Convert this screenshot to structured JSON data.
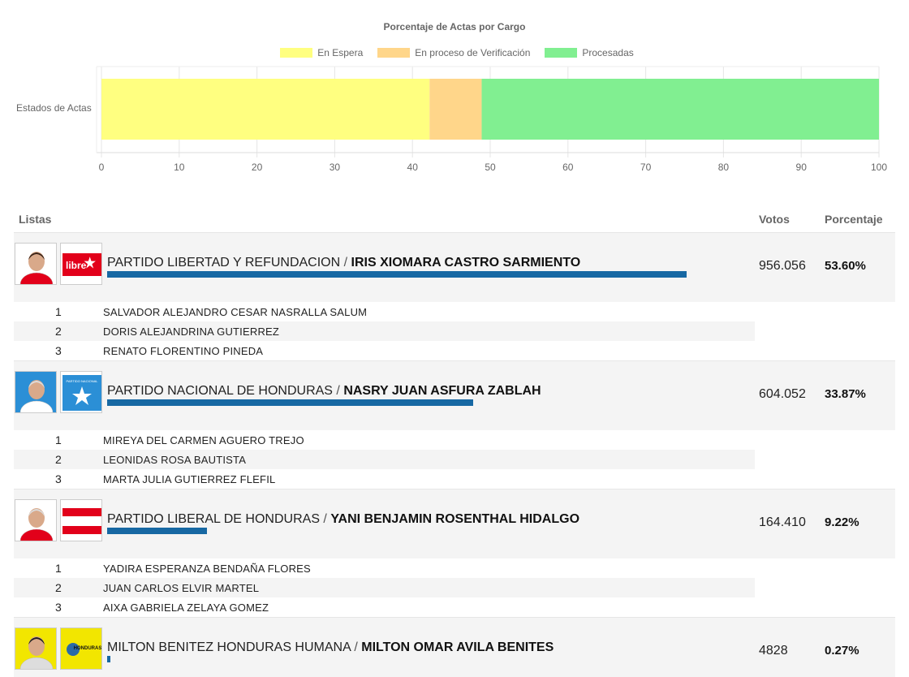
{
  "chart_data": {
    "type": "bar",
    "orientation": "horizontal",
    "stacked": true,
    "title": "Porcentaje de Actas por Cargo",
    "categories": [
      "Estados de Actas"
    ],
    "series": [
      {
        "name": "En Espera",
        "values": [
          42.2
        ],
        "color": "#ffff80"
      },
      {
        "name": "En proceso de Verificación",
        "values": [
          6.7
        ],
        "color": "#ffd68a"
      },
      {
        "name": "Procesadas",
        "values": [
          51.1
        ],
        "color": "#81ef91"
      }
    ],
    "xlim": [
      0,
      100
    ],
    "xticks": [
      "0",
      "10",
      "20",
      "30",
      "40",
      "50",
      "60",
      "70",
      "80",
      "90",
      "100"
    ],
    "grid": true,
    "legend": "top"
  },
  "table": {
    "headers": {
      "listas": "Listas",
      "votos": "Votos",
      "porcentaje": "Porcentaje"
    },
    "parties": [
      {
        "party": "PARTIDO LIBERTAD Y REFUNDACION",
        "candidate": "IRIS XIOMARA CASTRO SARMIENTO",
        "votes": "956.056",
        "percent": "53.60%",
        "share": 53.6,
        "logo_text": "libre",
        "logo_color": "#e2001a",
        "photo_bg": "#ffffff",
        "designates": [
          {
            "num": "1",
            "name": "SALVADOR ALEJANDRO CESAR NASRALLA SALUM"
          },
          {
            "num": "2",
            "name": "DORIS ALEJANDRINA GUTIERREZ"
          },
          {
            "num": "3",
            "name": "RENATO FLORENTINO PINEDA"
          }
        ]
      },
      {
        "party": "PARTIDO NACIONAL DE HONDURAS",
        "candidate": "NASRY JUAN ASFURA ZABLAH",
        "votes": "604.052",
        "percent": "33.87%",
        "share": 33.87,
        "logo_text": "PARTIDO NACIONAL",
        "logo_color": "#2b8fd6",
        "photo_bg": "#2b8fd6",
        "designates": [
          {
            "num": "1",
            "name": "MIREYA DEL CARMEN AGUERO TREJO"
          },
          {
            "num": "2",
            "name": "LEONIDAS ROSA BAUTISTA"
          },
          {
            "num": "3",
            "name": "MARTA JULIA GUTIERREZ FLEFIL"
          }
        ]
      },
      {
        "party": "PARTIDO LIBERAL DE HONDURAS",
        "candidate": "YANI BENJAMIN ROSENTHAL HIDALGO",
        "votes": "164.410",
        "percent": "9.22%",
        "share": 9.22,
        "logo_text": "",
        "logo_color": "#e2001a",
        "photo_bg": "#ffffff",
        "designates": [
          {
            "num": "1",
            "name": "YADIRA ESPERANZA BENDAÑA FLORES"
          },
          {
            "num": "2",
            "name": "JUAN CARLOS ELVIR MARTEL"
          },
          {
            "num": "3",
            "name": "AIXA GABRIELA ZELAYA GOMEZ"
          }
        ]
      },
      {
        "party": "MILTON BENITEZ HONDURAS HUMANA",
        "candidate": "MILTON OMAR AVILA BENITES",
        "votes": "4828",
        "percent": "0.27%",
        "share": 0.27,
        "logo_text": "HONDURAS",
        "logo_color": "#f2e600",
        "photo_bg": "#f2e600",
        "designates": []
      }
    ]
  }
}
